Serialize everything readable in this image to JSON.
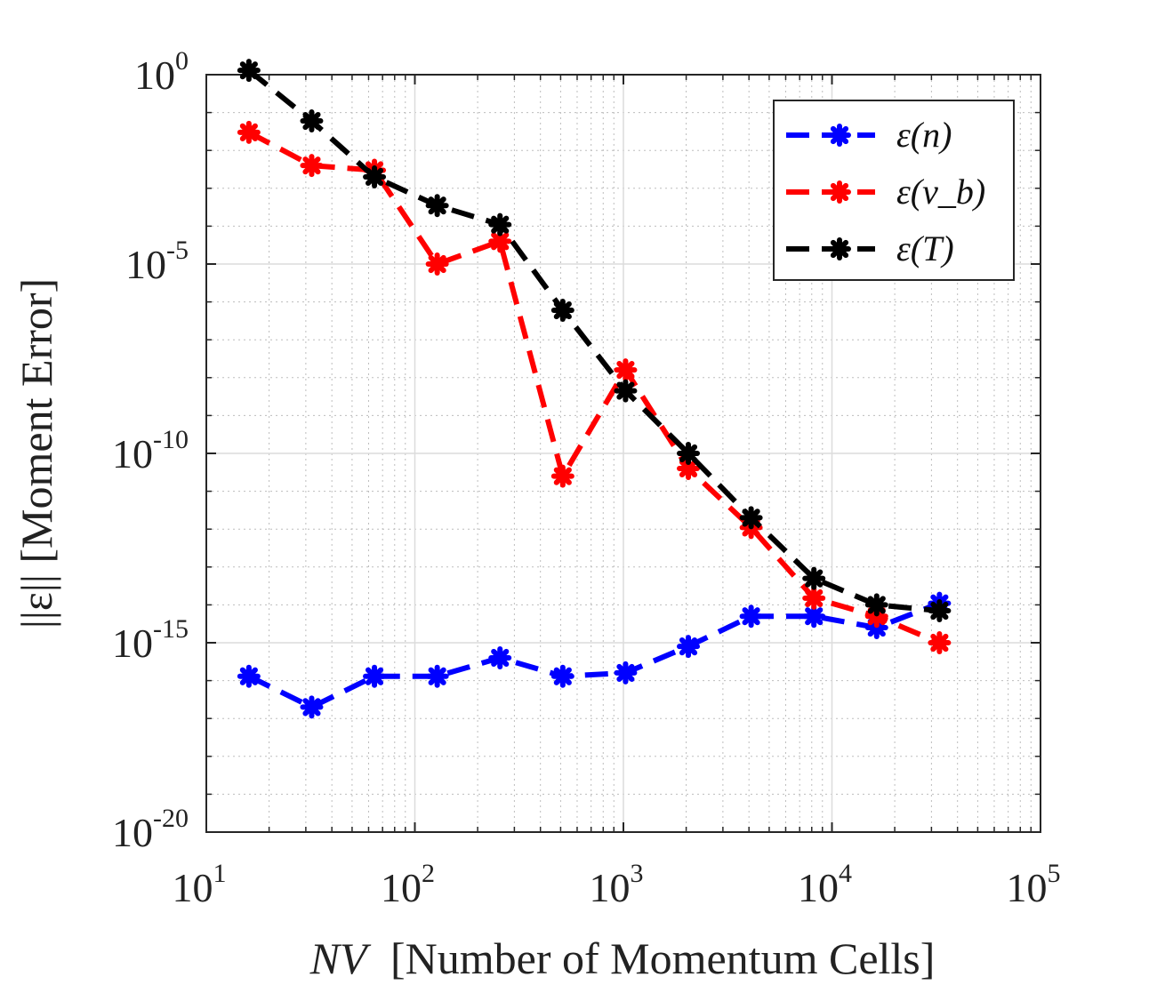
{
  "chart_data": {
    "type": "line",
    "title": "",
    "xscale": "log",
    "yscale": "log",
    "xlabel_var": "NV",
    "xlabel_text": "[Number of Momentum Cells]",
    "ylabel": "||ε|| [Moment Error]",
    "xlim": [
      10,
      100000
    ],
    "ylim": [
      1e-20,
      1
    ],
    "x_tick_labels": [
      "10",
      "10",
      "10",
      "10",
      "10"
    ],
    "x_tick_exponents": [
      "1",
      "2",
      "3",
      "4",
      "5"
    ],
    "y_tick_labels": [
      "10",
      "10",
      "10",
      "10",
      "10"
    ],
    "y_tick_exponents": [
      "0",
      "-5",
      "-10",
      "-15",
      "-20"
    ],
    "grid": true,
    "minor_grid": true,
    "legend_position": "top-right",
    "x": [
      16,
      32,
      64,
      128,
      256,
      512,
      1024,
      2048,
      4096,
      8192,
      16384,
      32768
    ],
    "series": [
      {
        "name": "ε(n)",
        "color": "#0000ff",
        "values": [
          1.3e-16,
          2e-17,
          1.3e-16,
          1.3e-16,
          4e-16,
          1.3e-16,
          1.6e-16,
          8e-16,
          5e-15,
          5e-15,
          2.5e-15,
          1.1e-14
        ]
      },
      {
        "name": "ε(v_b)",
        "color": "#ff0000",
        "values": [
          0.03,
          0.004,
          0.003,
          1e-05,
          4e-05,
          2.5e-11,
          1.6e-08,
          4e-11,
          1.1e-12,
          1.5e-14,
          5e-15,
          1e-15
        ]
      },
      {
        "name": "ε(T)",
        "color": "#000000",
        "values": [
          1.3,
          0.06,
          0.002,
          0.00035,
          0.00011,
          6e-07,
          4.5e-09,
          1e-10,
          2e-12,
          5e-14,
          1e-14,
          7e-15
        ]
      }
    ]
  }
}
